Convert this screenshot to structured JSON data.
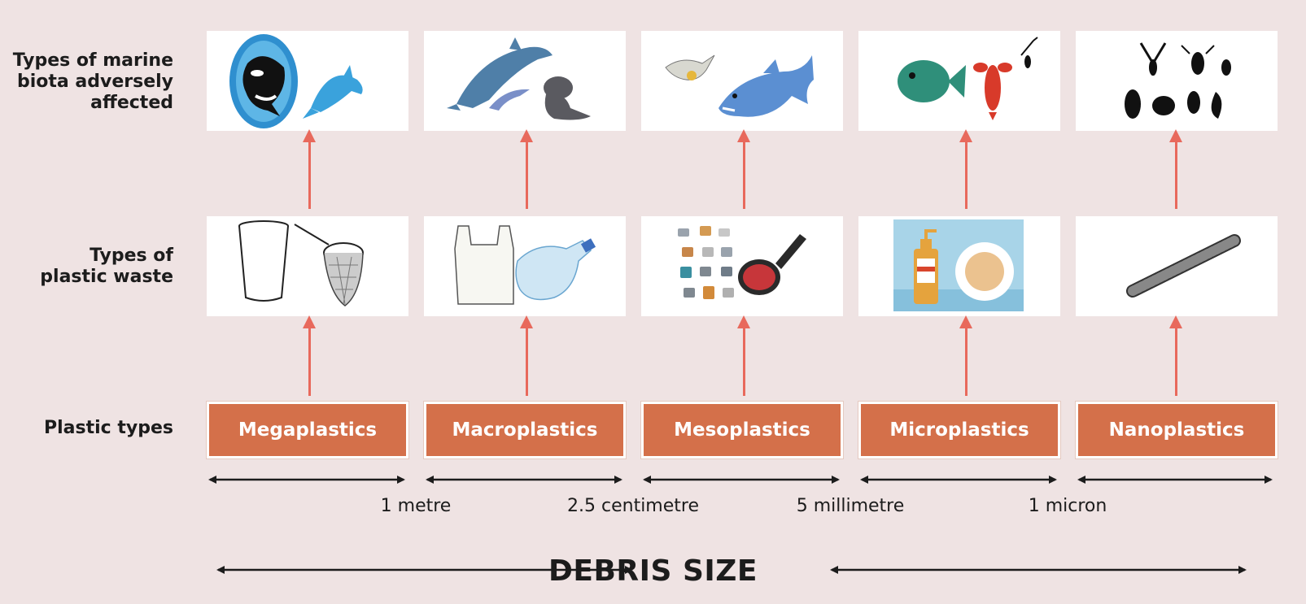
{
  "row_labels": {
    "biota": "Types of marine biota adversely affected",
    "waste_line1": "Types of",
    "waste_line2": "plastic waste",
    "types": "Plastic types",
    "biota_line1": "Types of marine",
    "biota_line2": "biota adversely",
    "biota_line3": "affected"
  },
  "plastic_types": [
    "Megaplastics",
    "Macroplastics",
    "Mesoplastics",
    "Microplastics",
    "Nanoplastics"
  ],
  "size_thresholds": [
    "1 metre",
    "2.5 centimetre",
    "5 millimetre",
    "1 micron"
  ],
  "axis_title": "DEBRIS SIZE",
  "colors": {
    "background": "#efe3e3",
    "type_box": "#d4704a",
    "arrow": "#e8695c",
    "text": "#1c1c1c"
  },
  "illustrations": {
    "biota": [
      "orca-and-dolphin-icon",
      "dolphins-and-seal-icon",
      "seagull-and-shark-icon",
      "fish-and-lobster-icon",
      "plankton-silhouettes-icon"
    ],
    "waste": [
      "cup-and-fishing-net-icon",
      "plastic-bag-and-bottle-icon",
      "bottle-caps-and-hairbrush-icon",
      "lotion-and-microbeads-icon",
      "nanotube-icon"
    ]
  }
}
